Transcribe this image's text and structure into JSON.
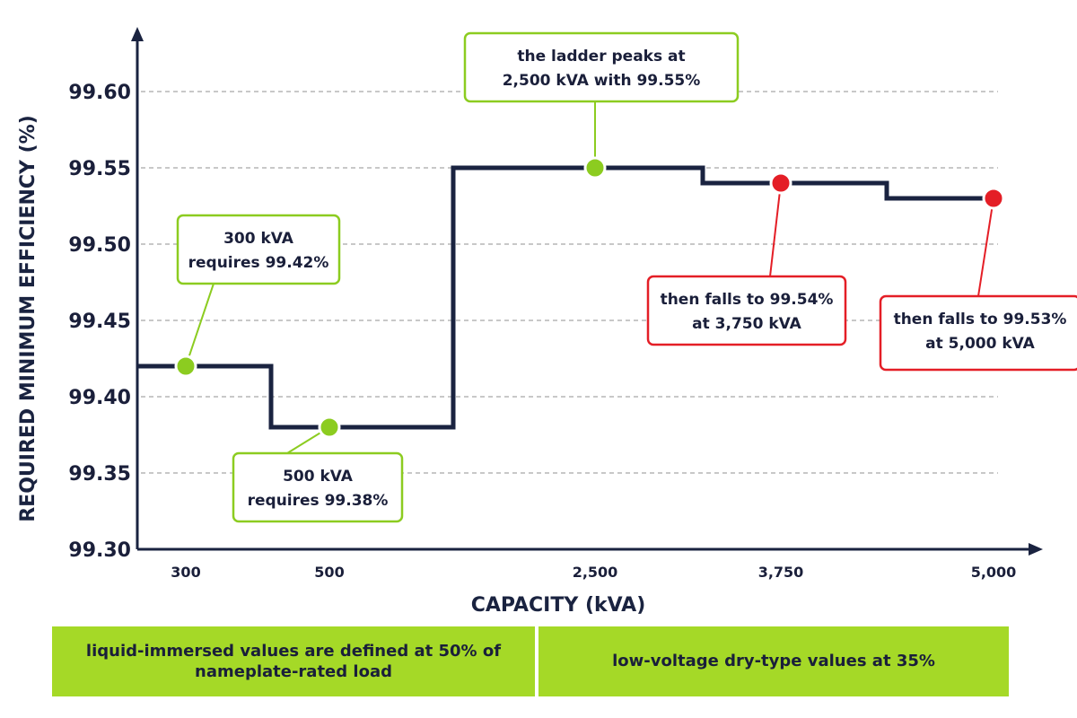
{
  "chart_data": {
    "type": "line",
    "step": true,
    "xlabel": "CAPACITY (kVA)",
    "ylabel": "REQUIRED MINIMUM EFFICIENCY (%)",
    "ylim": [
      99.3,
      99.6
    ],
    "yticks": [
      "99.30",
      "99.35",
      "99.40",
      "99.45",
      "99.50",
      "99.55",
      "99.60"
    ],
    "xticks": [
      "300",
      "500",
      "2,500",
      "3,750",
      "5,000"
    ],
    "grid": "horizontal dashed",
    "line_color": "#1a2340",
    "series": [
      {
        "steps": [
          {
            "from": 300,
            "to": 500,
            "value": 99.42
          },
          {
            "from": 500,
            "to": 2500,
            "value": 99.38
          },
          {
            "from": 2500,
            "to": 3750,
            "value": 99.55
          },
          {
            "from": 3750,
            "to": 5000,
            "value": 99.54
          },
          {
            "from": 5000,
            "to": 5000,
            "value": 99.53
          }
        ]
      }
    ],
    "highlight_points": [
      {
        "x": "300",
        "y": 99.42,
        "color": "#8ccc20"
      },
      {
        "x": "500",
        "y": 99.38,
        "color": "#8ccc20"
      },
      {
        "x": "2,500",
        "y": 99.55,
        "color": "#8ccc20"
      },
      {
        "x": "3,750",
        "y": 99.54,
        "color": "#e41e26"
      },
      {
        "x": "5,000",
        "y": 99.53,
        "color": "#e41e26"
      }
    ],
    "annotations": [
      {
        "point": 0,
        "lines": [
          "300 kVA",
          "requires 99.42%"
        ],
        "color": "#8ccc20"
      },
      {
        "point": 1,
        "lines": [
          "500 kVA",
          "requires 99.38%"
        ],
        "color": "#8ccc20"
      },
      {
        "point": 2,
        "lines": [
          "the ladder peaks at",
          "2,500 kVA with 99.55%"
        ],
        "color": "#8ccc20"
      },
      {
        "point": 3,
        "lines": [
          "then falls to 99.54%",
          "at 3,750 kVA"
        ],
        "color": "#e41e26"
      },
      {
        "point": 4,
        "lines": [
          "then falls to 99.53%",
          "at 5,000 kVA"
        ],
        "color": "#e41e26"
      }
    ]
  },
  "footer": {
    "left": "liquid-immersed values are defined at 50% of nameplate-rated load",
    "right": "low-voltage dry-type values at 35%"
  },
  "colors": {
    "axis": "#1a2340",
    "grid": "#b5b5b5",
    "green": "#8ccc20",
    "red": "#e41e26",
    "footer_bg": "#a5d927"
  }
}
